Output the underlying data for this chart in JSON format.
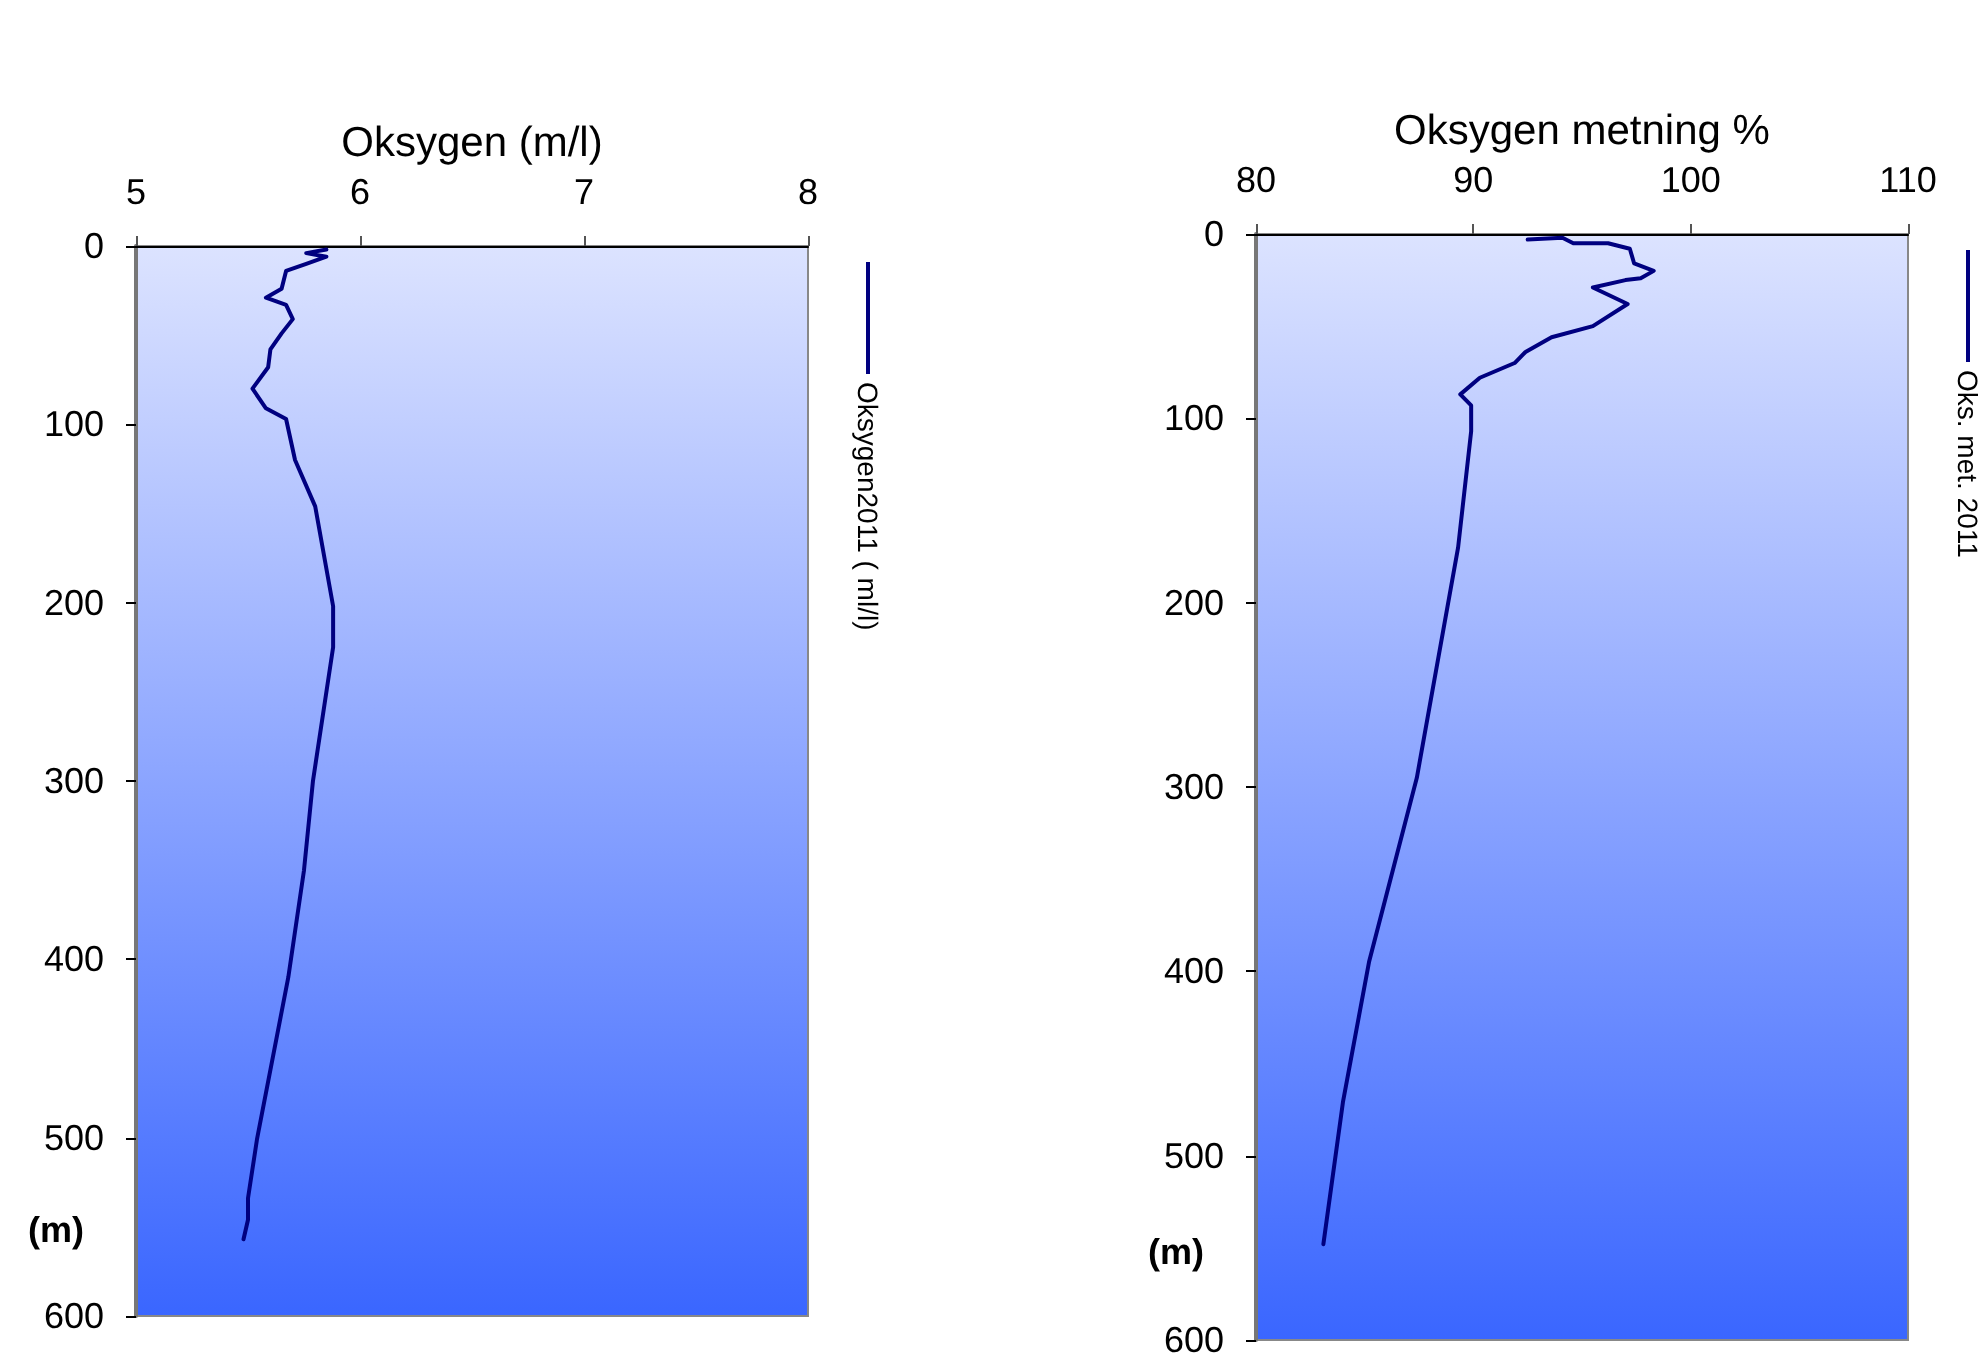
{
  "chart_data": [
    {
      "type": "line",
      "xlabel": "Oksygen (m/l)",
      "ylabel": "(m)",
      "xlim": [
        5,
        8
      ],
      "xticks": [
        5,
        6,
        7,
        8
      ],
      "ylim": [
        600,
        0
      ],
      "yticks": [
        0,
        100,
        200,
        300,
        400,
        500,
        600
      ],
      "grid": false,
      "legend": "right",
      "marker": "none",
      "line_style": "solid",
      "series": [
        {
          "name": "Oksygen2011 ( ml/l)",
          "color": "#000080",
          "x": [
            5.85,
            5.76,
            5.85,
            5.76,
            5.67,
            5.65,
            5.58,
            5.67,
            5.7,
            5.65,
            5.6,
            5.59,
            5.52,
            5.58,
            5.67,
            5.71,
            5.8,
            5.88,
            5.88,
            5.79,
            5.75,
            5.68,
            5.54,
            5.5,
            5.5,
            5.48
          ],
          "values": [
            2,
            4,
            6,
            10,
            14,
            24,
            29,
            33,
            41,
            49,
            58,
            68,
            80,
            91,
            97,
            120,
            146,
            202,
            225,
            300,
            350,
            410,
            501,
            534,
            546,
            557
          ]
        }
      ]
    },
    {
      "type": "line",
      "xlabel": "Oksygen metning %",
      "ylabel": "(m)",
      "xlim": [
        80,
        110
      ],
      "xticks": [
        80,
        90,
        100,
        110
      ],
      "ylim": [
        600,
        0
      ],
      "yticks": [
        0,
        100,
        200,
        300,
        400,
        500,
        600
      ],
      "grid": false,
      "legend": "right",
      "marker": "none",
      "line_style": "solid",
      "series": [
        {
          "name": "Oks. met. 2011",
          "color": "#000080",
          "x": [
            92.5,
            94.1,
            94.6,
            96.2,
            97.2,
            97.4,
            98.3,
            97.7,
            97.0,
            95.5,
            97.1,
            95.5,
            93.6,
            92.4,
            91.9,
            90.3,
            89.4,
            89.9,
            89.9,
            89.3,
            87.4,
            85.2,
            84.0,
            83.1
          ],
          "values": [
            3,
            2,
            5,
            5,
            8,
            16,
            20,
            24,
            25,
            29,
            38,
            50,
            56,
            64,
            70,
            78,
            87,
            93,
            107,
            170,
            295,
            395,
            471,
            548
          ]
        }
      ]
    }
  ]
}
